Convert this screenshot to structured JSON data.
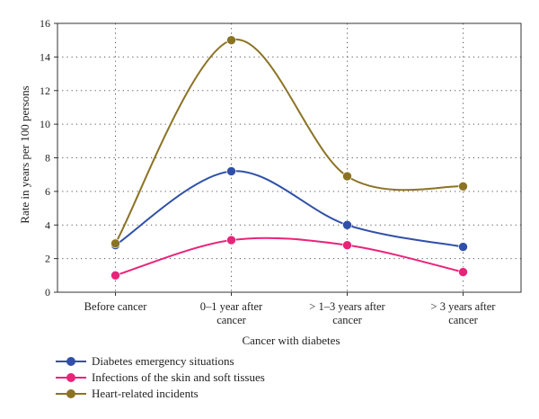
{
  "chart_data": {
    "type": "line",
    "smooth": true,
    "categories": [
      "Before cancer",
      "0–1 year after cancer",
      "> 1–3 years after cancer",
      "> 3 years after cancer"
    ],
    "category_label_lines": [
      [
        "Before cancer"
      ],
      [
        "0–1 year after",
        "cancer"
      ],
      [
        "> 1–3 years after",
        "cancer"
      ],
      [
        "> 3 years after",
        "cancer"
      ]
    ],
    "series": [
      {
        "name": "Diabetes emergency situations",
        "values": [
          2.8,
          7.2,
          4.0,
          2.7
        ],
        "color": "#3050a8"
      },
      {
        "name": "Infections of the skin and soft tissues",
        "values": [
          1.0,
          3.1,
          2.8,
          1.2
        ],
        "color": "#e8247a"
      },
      {
        "name": "Heart-related incidents",
        "values": [
          2.9,
          15.0,
          6.9,
          6.3
        ],
        "color": "#8b7324"
      }
    ],
    "xlabel": "Cancer with diabetes",
    "ylabel": "Rate in years per 100 persons",
    "ylim": [
      0,
      16
    ],
    "yticks": [
      0,
      2,
      4,
      6,
      8,
      10,
      12,
      14,
      16
    ],
    "grid": true,
    "legend_position": "bottom-left"
  }
}
